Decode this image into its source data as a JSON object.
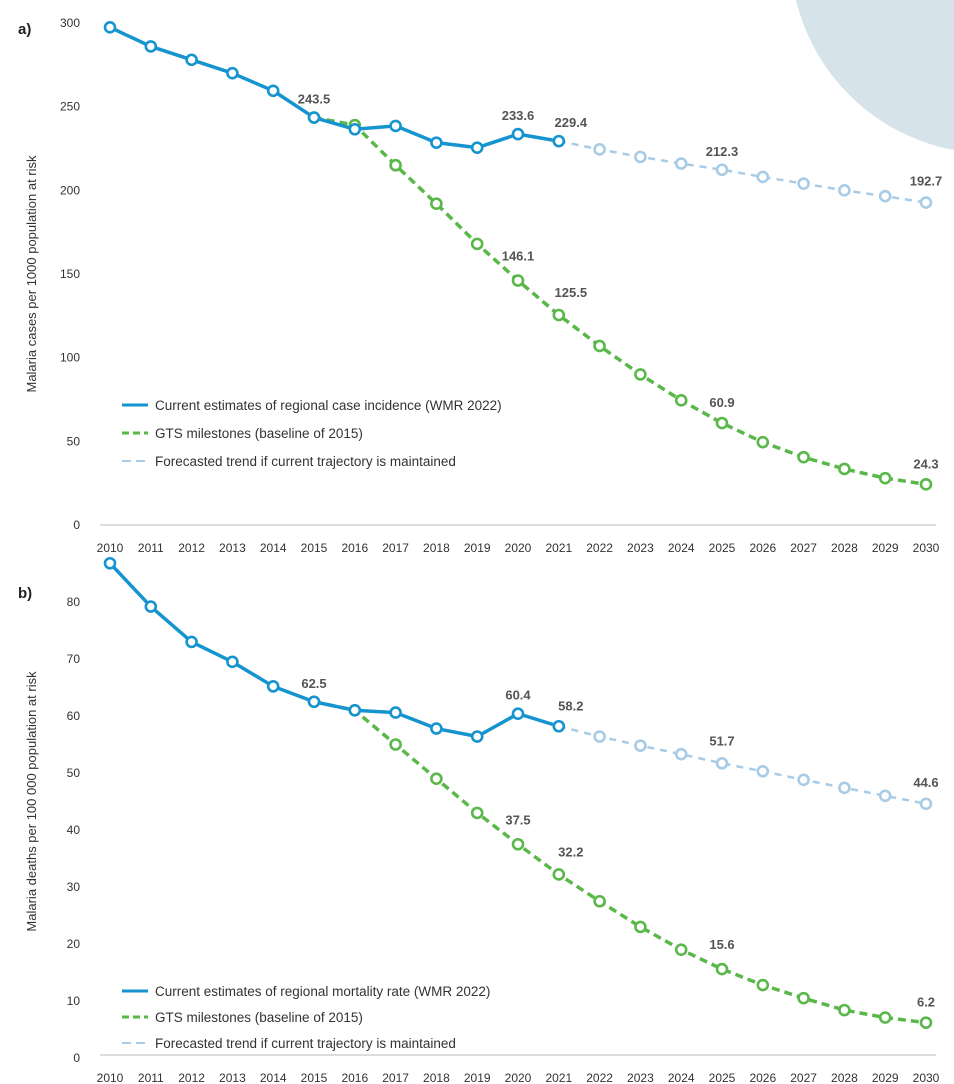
{
  "colors": {
    "current": "#1594cf",
    "milestone": "#5ab84a",
    "forecast": "#a8cbe6",
    "decoration": "#d6e3ea"
  },
  "chart_data": [
    {
      "panel_label": "a)",
      "type": "line",
      "ylabel": "Malaria cases per 1000 population at risk",
      "ylim": [
        0,
        300
      ],
      "yticks": [
        "0",
        "50",
        "100",
        "150",
        "200",
        "250",
        "300"
      ],
      "ytick_values": [
        0,
        50,
        100,
        150,
        200,
        250,
        300
      ],
      "x": [
        "2010",
        "2011",
        "2012",
        "2013",
        "2014",
        "2015",
        "2016",
        "2017",
        "2018",
        "2019",
        "2020",
        "2021",
        "2022",
        "2023",
        "2024",
        "2025",
        "2026",
        "2027",
        "2028",
        "2029",
        "2030"
      ],
      "legend_position": "bottom-left",
      "series": [
        {
          "name": "Current estimates of regional case incidence (WMR 2022)",
          "style": "solid",
          "color": "#1594cf",
          "values": [
            297.4,
            286,
            278,
            270,
            259.5,
            243.5,
            236.5,
            238.5,
            228.5,
            225.5,
            233.6,
            229.4,
            null,
            null,
            null,
            null,
            null,
            null,
            null,
            null,
            null
          ]
        },
        {
          "name": "GTS milestones (baseline of 2015)",
          "style": "dashed",
          "color": "#5ab84a",
          "values": [
            null,
            null,
            null,
            null,
            null,
            243.5,
            239,
            215,
            192,
            168,
            146.1,
            125.5,
            107,
            90,
            74.5,
            60.9,
            49.5,
            40.5,
            33.5,
            28,
            24.3
          ]
        },
        {
          "name": "Forecasted trend if current trajectory is maintained",
          "style": "dashed",
          "color": "#a8cbe6",
          "values": [
            null,
            null,
            null,
            null,
            null,
            null,
            null,
            null,
            null,
            null,
            null,
            229.4,
            224.5,
            220,
            216,
            212.3,
            208,
            204,
            200,
            196.5,
            192.7
          ]
        }
      ],
      "labels": [
        {
          "text": "243.5",
          "index": 5,
          "value": 243.5
        },
        {
          "text": "233.6",
          "index": 10,
          "value": 233.6
        },
        {
          "text": "229.4",
          "index": 11,
          "value": 229.4
        },
        {
          "text": "146.1",
          "index": 10,
          "value": 146.1
        },
        {
          "text": "125.5",
          "index": 11,
          "value": 125.5
        },
        {
          "text": "212.3",
          "index": 15,
          "value": 212.3
        },
        {
          "text": "60.9",
          "index": 15,
          "value": 60.9
        },
        {
          "text": "192.7",
          "index": 20,
          "value": 192.7
        },
        {
          "text": "24.3",
          "index": 20,
          "value": 24.3
        }
      ]
    },
    {
      "panel_label": "b)",
      "type": "line",
      "ylabel": "Malaria deaths per 100 000 population at risk",
      "ylim": [
        0,
        90
      ],
      "yticks": [
        "0",
        "10",
        "20",
        "30",
        "40",
        "50",
        "60",
        "70",
        "80"
      ],
      "ytick_values": [
        0,
        10,
        20,
        30,
        40,
        50,
        60,
        70,
        80
      ],
      "x": [
        "2010",
        "2011",
        "2012",
        "2013",
        "2014",
        "2015",
        "2016",
        "2017",
        "2018",
        "2019",
        "2020",
        "2021",
        "2022",
        "2023",
        "2024",
        "2025",
        "2026",
        "2027",
        "2028",
        "2029",
        "2030"
      ],
      "legend_position": "bottom-left",
      "series": [
        {
          "name": "Current estimates of regional mortality rate (WMR 2022)",
          "style": "solid",
          "color": "#1594cf",
          "values": [
            86.8,
            79.2,
            73,
            69.5,
            65.2,
            62.5,
            61,
            60.6,
            57.8,
            56.4,
            60.4,
            58.2,
            null,
            null,
            null,
            null,
            null,
            null,
            null,
            null,
            null
          ]
        },
        {
          "name": "GTS milestones (baseline of 2015)",
          "style": "dashed",
          "color": "#5ab84a",
          "values": [
            null,
            null,
            null,
            null,
            null,
            62.5,
            61,
            55,
            49,
            43,
            37.5,
            32.2,
            27.5,
            23,
            19,
            15.6,
            12.8,
            10.5,
            8.4,
            7.1,
            6.2
          ]
        },
        {
          "name": "Forecasted trend if current trajectory is maintained",
          "style": "dashed",
          "color": "#a8cbe6",
          "values": [
            null,
            null,
            null,
            null,
            null,
            null,
            null,
            null,
            null,
            null,
            null,
            58.2,
            56.4,
            54.8,
            53.3,
            51.7,
            50.3,
            48.8,
            47.4,
            46,
            44.6
          ]
        }
      ],
      "labels": [
        {
          "text": "62.5",
          "index": 5,
          "value": 62.5
        },
        {
          "text": "60.4",
          "index": 10,
          "value": 60.4
        },
        {
          "text": "58.2",
          "index": 11,
          "value": 58.2
        },
        {
          "text": "37.5",
          "index": 10,
          "value": 37.5
        },
        {
          "text": "32.2",
          "index": 11,
          "value": 32.2
        },
        {
          "text": "51.7",
          "index": 15,
          "value": 51.7
        },
        {
          "text": "15.6",
          "index": 15,
          "value": 15.6
        },
        {
          "text": "44.6",
          "index": 20,
          "value": 44.6
        },
        {
          "text": "6.2",
          "index": 20,
          "value": 6.2
        }
      ]
    }
  ]
}
